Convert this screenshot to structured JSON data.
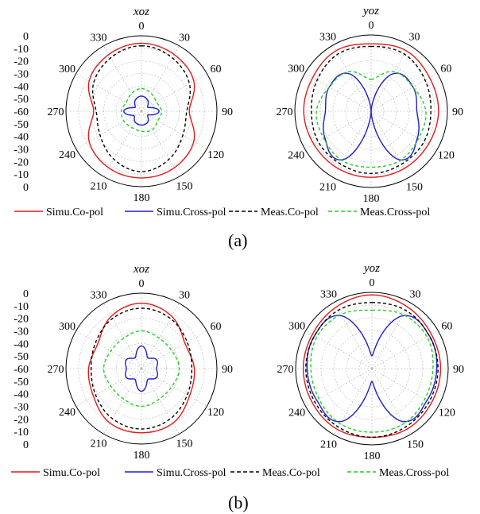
{
  "panels": [
    {
      "caption": "(a)",
      "legend": [
        {
          "label": "Simu.Co-pol",
          "color": "#e31a1c",
          "dash": "solid"
        },
        {
          "label": "Simu.Cross-pol",
          "color": "#1f1fcc",
          "dash": "solid"
        },
        {
          "label": "Meas.Co-pol",
          "color": "#000000",
          "dash": "dashed"
        },
        {
          "label": "Meas.Cross-pol",
          "color": "#22cc22",
          "dash": "dashed"
        }
      ]
    },
    {
      "caption": "(b)",
      "legend": [
        {
          "label": "Simu.Co-pol",
          "color": "#e31a1c",
          "dash": "solid"
        },
        {
          "label": "Simu.Cross-pol",
          "color": "#1f1fcc",
          "dash": "solid"
        },
        {
          "label": "Meas.Co-pol",
          "color": "#000000",
          "dash": "dashed"
        },
        {
          "label": "Meas.Cross-pol",
          "color": "#22cc22",
          "dash": "dashed"
        }
      ]
    }
  ],
  "chart_data": [
    {
      "type": "polar-line",
      "panel": "(a)",
      "title": "xoz",
      "angle_ticks": [
        "0",
        "30",
        "60",
        "90",
        "120",
        "150",
        "180",
        "210",
        "240",
        "270",
        "300",
        "330"
      ],
      "radial_ticks_upper": [
        "0",
        "-10",
        "-20",
        "-30",
        "-40",
        "-50",
        "-60"
      ],
      "radial_ticks_lower": [
        "-50",
        "-40",
        "-30",
        "-20",
        "-10",
        "0"
      ],
      "rlim": [
        -60,
        0
      ],
      "theta_deg": [
        0,
        30,
        60,
        90,
        120,
        150,
        180,
        210,
        240,
        270,
        300,
        330
      ],
      "series": [
        {
          "name": "Simu.Co-pol",
          "values": [
            -6,
            -8,
            -12,
            -22,
            -12,
            -8,
            -7,
            -8,
            -12,
            -22,
            -12,
            -8
          ]
        },
        {
          "name": "Simu.Cross-pol",
          "values": [
            -48,
            -50,
            -54,
            -46,
            -54,
            -50,
            -49,
            -50,
            -53,
            -46,
            -54,
            -50
          ]
        },
        {
          "name": "Meas.Co-pol",
          "values": [
            -8,
            -11,
            -16,
            -24,
            -22,
            -16,
            -12,
            -16,
            -22,
            -24,
            -16,
            -11
          ]
        },
        {
          "name": "Meas.Cross-pol",
          "values": [
            -42,
            -44,
            -46,
            -44,
            -45,
            -43,
            -44,
            -45,
            -44,
            -44,
            -46,
            -44
          ]
        }
      ]
    },
    {
      "type": "polar-line",
      "panel": "(a)",
      "title": "yoz",
      "angle_ticks": [
        "0",
        "30",
        "60",
        "90",
        "120",
        "150",
        "180",
        "210",
        "240",
        "270",
        "300",
        "330"
      ],
      "rlim": [
        -60,
        0
      ],
      "theta_deg": [
        0,
        30,
        60,
        90,
        120,
        150,
        180,
        210,
        240,
        270,
        300,
        330
      ],
      "series": [
        {
          "name": "Simu.Co-pol",
          "values": [
            -7,
            -5,
            -7,
            -7,
            -8,
            -8,
            -8,
            -8,
            -8,
            -7,
            -7,
            -5
          ]
        },
        {
          "name": "Simu.Cross-pol",
          "values": [
            -60,
            -26,
            -22,
            -24,
            -18,
            -16,
            -60,
            -16,
            -18,
            -24,
            -22,
            -26
          ]
        },
        {
          "name": "Meas.Co-pol",
          "values": [
            -9,
            -8,
            -11,
            -13,
            -12,
            -12,
            -11,
            -12,
            -12,
            -13,
            -11,
            -8
          ]
        },
        {
          "name": "Meas.Cross-pol",
          "values": [
            -35,
            -24,
            -22,
            -17,
            -17,
            -15,
            -16,
            -15,
            -17,
            -17,
            -22,
            -24
          ]
        }
      ]
    },
    {
      "type": "polar-line",
      "panel": "(b)",
      "title": "xoz",
      "angle_ticks": [
        "0",
        "30",
        "60",
        "90",
        "120",
        "150",
        "180",
        "210",
        "240",
        "270",
        "300",
        "330"
      ],
      "radial_ticks_upper": [
        "0",
        "-10",
        "-20",
        "-30",
        "-40",
        "-50",
        "-60"
      ],
      "radial_ticks_lower": [
        "-50",
        "-40",
        "-30",
        "-20",
        "-10",
        "0"
      ],
      "rlim": [
        -60,
        0
      ],
      "theta_deg": [
        0,
        30,
        60,
        90,
        120,
        150,
        180,
        210,
        240,
        270,
        300,
        330
      ],
      "series": [
        {
          "name": "Simu.Co-pol",
          "values": [
            -8,
            -12,
            -20,
            -18,
            -16,
            -10,
            -9,
            -10,
            -16,
            -18,
            -20,
            -12
          ]
        },
        {
          "name": "Simu.Cross-pol",
          "values": [
            -42,
            -50,
            -46,
            -48,
            -46,
            -50,
            -42,
            -50,
            -46,
            -48,
            -46,
            -50
          ]
        },
        {
          "name": "Meas.Co-pol",
          "values": [
            -12,
            -14,
            -18,
            -20,
            -18,
            -14,
            -12,
            -14,
            -18,
            -20,
            -18,
            -14
          ]
        },
        {
          "name": "Meas.Cross-pol",
          "values": [
            -30,
            -32,
            -32,
            -30,
            -32,
            -32,
            -30,
            -32,
            -32,
            -30,
            -32,
            -32
          ]
        }
      ]
    },
    {
      "type": "polar-line",
      "panel": "(b)",
      "title": "yoz",
      "angle_ticks": [
        "0",
        "30",
        "60",
        "90",
        "120",
        "150",
        "180",
        "210",
        "240",
        "270",
        "300",
        "330"
      ],
      "rlim": [
        -60,
        0
      ],
      "theta_deg": [
        0,
        30,
        60,
        90,
        120,
        150,
        180,
        210,
        240,
        270,
        300,
        330
      ],
      "series": [
        {
          "name": "Simu.Co-pol",
          "values": [
            -2,
            -4,
            -6,
            -6,
            -6,
            -5,
            -6,
            -5,
            -6,
            -6,
            -6,
            -4
          ]
        },
        {
          "name": "Simu.Cross-pol",
          "values": [
            -50,
            -12,
            -8,
            -9,
            -10,
            -12,
            -50,
            -12,
            -10,
            -9,
            -8,
            -12
          ]
        },
        {
          "name": "Meas.Co-pol",
          "values": [
            -8,
            -7,
            -8,
            -8,
            -8,
            -7,
            -6,
            -7,
            -8,
            -8,
            -8,
            -7
          ]
        },
        {
          "name": "Meas.Cross-pol",
          "values": [
            -14,
            -11,
            -10,
            -12,
            -12,
            -10,
            -10,
            -10,
            -12,
            -12,
            -10,
            -11
          ]
        }
      ]
    }
  ]
}
